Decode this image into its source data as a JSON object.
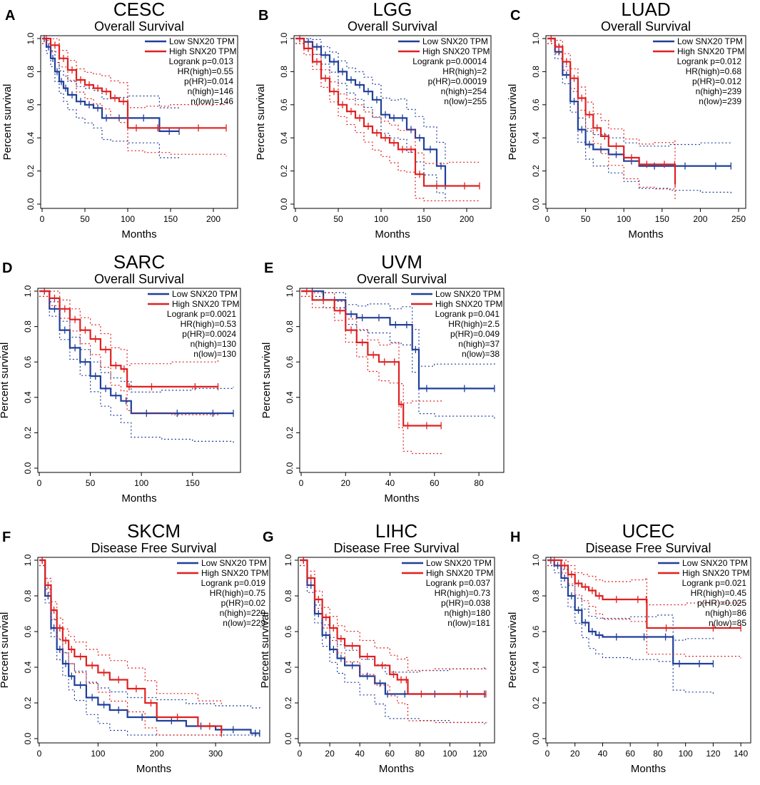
{
  "figure": {
    "legend_low": "Low SNX20 TPM",
    "legend_high": "High SNX20 TPM",
    "ylabel": "Percent survival",
    "xlabel": "Months",
    "colors": {
      "low": "#1f3f9a",
      "high": "#e02020"
    }
  },
  "chart_data": [
    {
      "panel": "A",
      "type": "line",
      "title": "CESC",
      "subtitle": "Overall Survival",
      "xlabel": "Months",
      "ylabel": "Percent survival",
      "xlim": [
        0,
        220
      ],
      "ylim": [
        0,
        1
      ],
      "xticks": [
        0,
        50,
        100,
        150,
        200
      ],
      "yticks": [
        0,
        0.2,
        0.4,
        0.6,
        0.8,
        1.0
      ],
      "stats": [
        "Logrank p=0.013",
        "HR(high)=0.55",
        "p(HR)=0.014",
        "n(high)=146",
        "n(low)=146"
      ],
      "series": [
        {
          "name": "Low SNX20 TPM",
          "x": [
            0,
            5,
            10,
            15,
            20,
            25,
            30,
            40,
            50,
            60,
            70,
            80,
            100,
            137,
            160
          ],
          "y": [
            1.0,
            0.95,
            0.88,
            0.8,
            0.74,
            0.7,
            0.66,
            0.62,
            0.6,
            0.58,
            0.52,
            0.52,
            0.52,
            0.44,
            0.44
          ]
        },
        {
          "name": "High SNX20 TPM",
          "x": [
            0,
            10,
            20,
            30,
            40,
            50,
            60,
            70,
            80,
            90,
            100,
            120,
            150,
            215
          ],
          "y": [
            1.0,
            0.96,
            0.88,
            0.81,
            0.75,
            0.72,
            0.7,
            0.68,
            0.64,
            0.62,
            0.46,
            0.46,
            0.46,
            0.46
          ]
        }
      ]
    },
    {
      "panel": "B",
      "type": "line",
      "title": "LGG",
      "subtitle": "Overall Survival",
      "xlabel": "Months",
      "ylabel": "Percent survival",
      "xlim": [
        0,
        220
      ],
      "ylim": [
        0,
        1
      ],
      "xticks": [
        0,
        50,
        100,
        150,
        200
      ],
      "yticks": [
        0,
        0.2,
        0.4,
        0.6,
        0.8,
        1.0
      ],
      "stats": [
        "Logrank p=0.00014",
        "HR(high)=2",
        "p(HR)=0.00019",
        "n(high)=254",
        "n(low)=255"
      ],
      "series": [
        {
          "name": "Low SNX20 TPM",
          "x": [
            0,
            10,
            20,
            30,
            40,
            50,
            60,
            70,
            80,
            90,
            100,
            110,
            120,
            130,
            140,
            150,
            165,
            175
          ],
          "y": [
            1.0,
            0.98,
            0.95,
            0.9,
            0.86,
            0.8,
            0.75,
            0.72,
            0.68,
            0.63,
            0.54,
            0.52,
            0.52,
            0.45,
            0.4,
            0.33,
            0.23,
            0.11
          ]
        },
        {
          "name": "High SNX20 TPM",
          "x": [
            0,
            10,
            20,
            30,
            40,
            50,
            60,
            70,
            80,
            90,
            100,
            110,
            120,
            130,
            140,
            150,
            180,
            215
          ],
          "y": [
            1.0,
            0.94,
            0.86,
            0.76,
            0.68,
            0.6,
            0.56,
            0.52,
            0.47,
            0.43,
            0.4,
            0.37,
            0.33,
            0.33,
            0.18,
            0.11,
            0.11,
            0.11
          ]
        }
      ]
    },
    {
      "panel": "C",
      "type": "line",
      "title": "LUAD",
      "subtitle": "Overall Survival",
      "xlabel": "Months",
      "ylabel": "Percent survival",
      "xlim": [
        0,
        250
      ],
      "ylim": [
        0,
        1
      ],
      "xticks": [
        0,
        50,
        100,
        150,
        200,
        250
      ],
      "yticks": [
        0,
        0.2,
        0.4,
        0.6,
        0.8,
        1.0
      ],
      "stats": [
        "Logrank p=0.012",
        "HR(high)=0.68",
        "p(HR)=0.012",
        "n(high)=239",
        "n(low)=239"
      ],
      "series": [
        {
          "name": "Low SNX20 TPM",
          "x": [
            0,
            10,
            20,
            30,
            40,
            50,
            60,
            80,
            100,
            120,
            160,
            200,
            240
          ],
          "y": [
            1.0,
            0.92,
            0.78,
            0.62,
            0.45,
            0.36,
            0.33,
            0.3,
            0.26,
            0.23,
            0.23,
            0.23,
            0.23
          ]
        },
        {
          "name": "High SNX20 TPM",
          "x": [
            0,
            10,
            20,
            30,
            40,
            50,
            60,
            70,
            80,
            100,
            120,
            140,
            166,
            167
          ],
          "y": [
            1.0,
            0.95,
            0.86,
            0.76,
            0.64,
            0.54,
            0.46,
            0.41,
            0.35,
            0.28,
            0.24,
            0.24,
            0.24,
            0.12
          ]
        }
      ]
    },
    {
      "panel": "D",
      "type": "line",
      "title": "SARC",
      "subtitle": "Overall Survival",
      "xlabel": "Months",
      "ylabel": "Percent survival",
      "xlim": [
        0,
        190
      ],
      "ylim": [
        0,
        1
      ],
      "xticks": [
        0,
        50,
        100,
        150
      ],
      "yticks": [
        0,
        0.2,
        0.4,
        0.6,
        0.8,
        1.0
      ],
      "stats": [
        "Logrank p=0.0021",
        "HR(high)=0.53",
        "p(HR)=0.0024",
        "n(high)=130",
        "n(low)=130"
      ],
      "series": [
        {
          "name": "Low SNX20 TPM",
          "x": [
            0,
            10,
            20,
            30,
            40,
            50,
            60,
            70,
            80,
            90,
            120,
            150,
            190
          ],
          "y": [
            1.0,
            0.9,
            0.78,
            0.68,
            0.6,
            0.52,
            0.45,
            0.41,
            0.38,
            0.31,
            0.31,
            0.31,
            0.31
          ]
        },
        {
          "name": "High SNX20 TPM",
          "x": [
            0,
            10,
            20,
            30,
            40,
            50,
            60,
            70,
            80,
            86,
            90,
            130,
            175
          ],
          "y": [
            1.0,
            0.96,
            0.9,
            0.84,
            0.78,
            0.73,
            0.67,
            0.58,
            0.56,
            0.46,
            0.46,
            0.46,
            0.46
          ]
        }
      ]
    },
    {
      "panel": "E",
      "type": "line",
      "title": "UVM",
      "subtitle": "Overall Survival",
      "xlabel": "Months",
      "ylabel": "Percent survival",
      "xlim": [
        0,
        88
      ],
      "ylim": [
        0,
        1
      ],
      "xticks": [
        0,
        20,
        40,
        60,
        80
      ],
      "yticks": [
        0,
        0.2,
        0.4,
        0.6,
        0.8,
        1.0
      ],
      "stats": [
        "Logrank p=0.041",
        "HR(high)=2.5",
        "p(HR)=0.049",
        "n(high)=37",
        "n(low)=38"
      ],
      "series": [
        {
          "name": "Low SNX20 TPM",
          "x": [
            0,
            10,
            20,
            25,
            30,
            40,
            45,
            50,
            53,
            60,
            87
          ],
          "y": [
            1.0,
            0.95,
            0.87,
            0.85,
            0.85,
            0.81,
            0.81,
            0.67,
            0.45,
            0.45,
            0.45
          ]
        },
        {
          "name": "High SNX20 TPM",
          "x": [
            0,
            5,
            15,
            20,
            25,
            30,
            35,
            40,
            44,
            46,
            50,
            63
          ],
          "y": [
            1.0,
            0.95,
            0.89,
            0.78,
            0.71,
            0.64,
            0.6,
            0.6,
            0.36,
            0.24,
            0.24,
            0.24
          ]
        }
      ]
    },
    {
      "panel": "F",
      "type": "line",
      "title": "SKCM",
      "subtitle": "Disease Free Survival",
      "xlabel": "Months",
      "ylabel": "Percent survival",
      "xlim": [
        0,
        380
      ],
      "ylim": [
        0,
        1
      ],
      "xticks": [
        0,
        100,
        200,
        300
      ],
      "yticks": [
        0,
        0.2,
        0.4,
        0.6,
        0.8,
        1.0
      ],
      "stats": [
        "Logrank p=0.019",
        "HR(high)=0.75",
        "p(HR)=0.02",
        "n(high)=229",
        "n(low)=229"
      ],
      "series": [
        {
          "name": "Low SNX20 TPM",
          "x": [
            0,
            10,
            20,
            30,
            40,
            50,
            60,
            80,
            100,
            120,
            150,
            200,
            250,
            300,
            360,
            375
          ],
          "y": [
            1.0,
            0.8,
            0.62,
            0.5,
            0.42,
            0.35,
            0.3,
            0.23,
            0.19,
            0.16,
            0.12,
            0.1,
            0.07,
            0.05,
            0.03,
            0.03
          ]
        },
        {
          "name": "High SNX20 TPM",
          "x": [
            0,
            10,
            20,
            30,
            40,
            50,
            60,
            80,
            100,
            120,
            150,
            180,
            200,
            270,
            310
          ],
          "y": [
            1.0,
            0.86,
            0.72,
            0.62,
            0.55,
            0.5,
            0.46,
            0.41,
            0.37,
            0.33,
            0.28,
            0.2,
            0.12,
            0.07,
            0.03
          ]
        }
      ]
    },
    {
      "panel": "G",
      "type": "line",
      "title": "LIHC",
      "subtitle": "Disease Free Survival",
      "xlabel": "Months",
      "ylabel": "Percent survival",
      "xlim": [
        0,
        125
      ],
      "ylim": [
        0,
        1
      ],
      "xticks": [
        0,
        20,
        40,
        60,
        80,
        100,
        120
      ],
      "yticks": [
        0,
        0.2,
        0.4,
        0.6,
        0.8,
        1.0
      ],
      "stats": [
        "Logrank p=0.037",
        "HR(high)=0.73",
        "p(HR)=0.038",
        "n(high)=180",
        "n(low)=181"
      ],
      "series": [
        {
          "name": "Low SNX20 TPM",
          "x": [
            0,
            5,
            10,
            15,
            20,
            25,
            30,
            40,
            50,
            57,
            60,
            80,
            100,
            123
          ],
          "y": [
            1.0,
            0.86,
            0.7,
            0.58,
            0.5,
            0.45,
            0.41,
            0.35,
            0.31,
            0.25,
            0.25,
            0.25,
            0.25,
            0.25
          ]
        },
        {
          "name": "High SNX20 TPM",
          "x": [
            0,
            5,
            10,
            15,
            20,
            25,
            30,
            40,
            50,
            60,
            65,
            70,
            72,
            90,
            124
          ],
          "y": [
            1.0,
            0.9,
            0.78,
            0.68,
            0.62,
            0.56,
            0.52,
            0.46,
            0.41,
            0.36,
            0.33,
            0.33,
            0.25,
            0.25,
            0.25
          ]
        }
      ]
    },
    {
      "panel": "H",
      "type": "line",
      "title": "UCEC",
      "subtitle": "Disease Free Survival",
      "xlabel": "Months",
      "ylabel": "Percent survival",
      "xlim": [
        0,
        142
      ],
      "ylim": [
        0,
        1
      ],
      "xticks": [
        0,
        20,
        40,
        60,
        80,
        100,
        120,
        140
      ],
      "yticks": [
        0,
        0.2,
        0.4,
        0.6,
        0.8,
        1.0
      ],
      "stats": [
        "Logrank p=0.021",
        "HR(high)=0.45",
        "p(HR)=0.025",
        "n(high)=86",
        "n(low)=85"
      ],
      "series": [
        {
          "name": "Low SNX20 TPM",
          "x": [
            0,
            5,
            10,
            15,
            20,
            25,
            30,
            35,
            40,
            60,
            80,
            91,
            100,
            120
          ],
          "y": [
            1.0,
            0.97,
            0.9,
            0.8,
            0.72,
            0.65,
            0.6,
            0.58,
            0.57,
            0.57,
            0.57,
            0.42,
            0.42,
            0.42
          ]
        },
        {
          "name": "High SNX20 TPM",
          "x": [
            0,
            10,
            15,
            20,
            25,
            30,
            35,
            40,
            60,
            71,
            72,
            100,
            140
          ],
          "y": [
            1.0,
            0.97,
            0.92,
            0.87,
            0.85,
            0.83,
            0.8,
            0.78,
            0.78,
            0.78,
            0.62,
            0.62,
            0.62
          ]
        }
      ]
    }
  ]
}
